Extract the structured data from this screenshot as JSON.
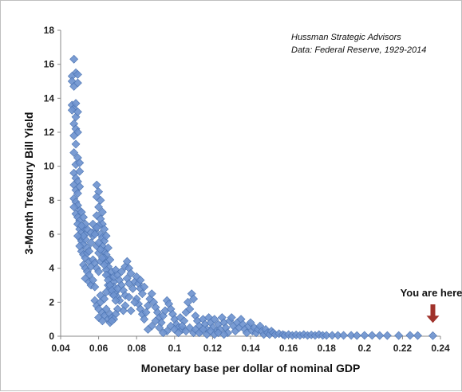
{
  "chart_data": {
    "type": "scatter",
    "title": "",
    "xlabel": "Monetary base per dollar of nominal GDP",
    "ylabel": "3-Month Treasury Bill Yield",
    "xlim": [
      0.04,
      0.24
    ],
    "ylim": [
      0,
      18
    ],
    "xticks": [
      0.04,
      0.06,
      0.08,
      0.1,
      0.12,
      0.14,
      0.16,
      0.18,
      0.2,
      0.22,
      0.24
    ],
    "xtick_labels": [
      "0.04",
      "0.06",
      "0.08",
      "0.1",
      "0.12",
      "0.14",
      "0.16",
      "0.18",
      "0.2",
      "0.22",
      "0.24"
    ],
    "yticks": [
      0,
      2,
      4,
      6,
      8,
      10,
      12,
      14,
      16,
      18
    ],
    "ytick_labels": [
      "0",
      "2",
      "4",
      "6",
      "8",
      "10",
      "12",
      "14",
      "16",
      "18"
    ],
    "grid": false,
    "marker": "diamond",
    "marker_color": "#6f94cf",
    "marker_edge_color": "#4a72b0",
    "annotations": [
      {
        "text": "Hussman Strategic Advisors"
      },
      {
        "text": "Data: Federal Reserve, 1929-2014"
      },
      {
        "text": "You are here",
        "x": 0.236,
        "y": 0.6,
        "arrow_color": "#a0322b"
      }
    ],
    "points": [
      [
        0.047,
        16.3
      ],
      [
        0.048,
        15.5
      ],
      [
        0.046,
        15.3
      ],
      [
        0.049,
        15.4
      ],
      [
        0.046,
        15.0
      ],
      [
        0.047,
        14.7
      ],
      [
        0.049,
        14.9
      ],
      [
        0.046,
        13.6
      ],
      [
        0.047,
        13.4
      ],
      [
        0.048,
        13.7
      ],
      [
        0.046,
        13.3
      ],
      [
        0.048,
        12.9
      ],
      [
        0.049,
        13.2
      ],
      [
        0.047,
        12.5
      ],
      [
        0.048,
        12.2
      ],
      [
        0.049,
        12.0
      ],
      [
        0.047,
        11.8
      ],
      [
        0.048,
        11.3
      ],
      [
        0.047,
        10.8
      ],
      [
        0.049,
        10.5
      ],
      [
        0.048,
        10.1
      ],
      [
        0.05,
        10.2
      ],
      [
        0.047,
        9.6
      ],
      [
        0.048,
        9.3
      ],
      [
        0.049,
        9.1
      ],
      [
        0.05,
        9.7
      ],
      [
        0.047,
        8.9
      ],
      [
        0.048,
        8.6
      ],
      [
        0.049,
        8.4
      ],
      [
        0.05,
        8.8
      ],
      [
        0.047,
        8.1
      ],
      [
        0.048,
        7.9
      ],
      [
        0.049,
        7.7
      ],
      [
        0.05,
        7.4
      ],
      [
        0.047,
        7.6
      ],
      [
        0.048,
        7.2
      ],
      [
        0.049,
        7.0
      ],
      [
        0.051,
        7.3
      ],
      [
        0.05,
        6.8
      ],
      [
        0.052,
        7.0
      ],
      [
        0.049,
        6.6
      ],
      [
        0.05,
        6.3
      ],
      [
        0.051,
        6.1
      ],
      [
        0.052,
        6.4
      ],
      [
        0.053,
        6.0
      ],
      [
        0.05,
        5.8
      ],
      [
        0.051,
        5.6
      ],
      [
        0.052,
        5.4
      ],
      [
        0.053,
        5.7
      ],
      [
        0.054,
        5.2
      ],
      [
        0.051,
        5.0
      ],
      [
        0.052,
        4.8
      ],
      [
        0.053,
        4.6
      ],
      [
        0.054,
        4.9
      ],
      [
        0.055,
        4.4
      ],
      [
        0.052,
        4.2
      ],
      [
        0.053,
        4.0
      ],
      [
        0.054,
        3.8
      ],
      [
        0.055,
        3.6
      ],
      [
        0.056,
        4.1
      ],
      [
        0.053,
        3.4
      ],
      [
        0.055,
        3.2
      ],
      [
        0.056,
        3.0
      ],
      [
        0.057,
        3.3
      ],
      [
        0.058,
        2.9
      ],
      [
        0.056,
        5.5
      ],
      [
        0.057,
        5.9
      ],
      [
        0.058,
        6.2
      ],
      [
        0.059,
        5.3
      ],
      [
        0.06,
        4.9
      ],
      [
        0.057,
        4.5
      ],
      [
        0.058,
        4.3
      ],
      [
        0.059,
        4.0
      ],
      [
        0.06,
        3.8
      ],
      [
        0.061,
        4.4
      ],
      [
        0.059,
        8.9
      ],
      [
        0.06,
        8.5
      ],
      [
        0.059,
        8.2
      ],
      [
        0.061,
        8.0
      ],
      [
        0.06,
        7.6
      ],
      [
        0.062,
        7.3
      ],
      [
        0.059,
        7.1
      ],
      [
        0.061,
        6.9
      ],
      [
        0.062,
        6.6
      ],
      [
        0.063,
        6.3
      ],
      [
        0.06,
        6.5
      ],
      [
        0.061,
        6.0
      ],
      [
        0.062,
        5.8
      ],
      [
        0.063,
        5.6
      ],
      [
        0.064,
        5.9
      ],
      [
        0.062,
        5.3
      ],
      [
        0.063,
        5.0
      ],
      [
        0.064,
        4.8
      ],
      [
        0.065,
        5.2
      ],
      [
        0.063,
        4.6
      ],
      [
        0.064,
        4.3
      ],
      [
        0.065,
        4.1
      ],
      [
        0.066,
        4.5
      ],
      [
        0.064,
        3.9
      ],
      [
        0.065,
        3.6
      ],
      [
        0.066,
        3.4
      ],
      [
        0.067,
        3.8
      ],
      [
        0.068,
        3.2
      ],
      [
        0.065,
        3.0
      ],
      [
        0.066,
        2.8
      ],
      [
        0.067,
        2.5
      ],
      [
        0.068,
        2.9
      ],
      [
        0.069,
        2.6
      ],
      [
        0.07,
        2.3
      ],
      [
        0.058,
        2.1
      ],
      [
        0.059,
        1.8
      ],
      [
        0.06,
        1.6
      ],
      [
        0.061,
        2.0
      ],
      [
        0.062,
        1.4
      ],
      [
        0.063,
        1.2
      ],
      [
        0.064,
        1.6
      ],
      [
        0.065,
        1.0
      ],
      [
        0.066,
        1.3
      ],
      [
        0.061,
        2.4
      ],
      [
        0.063,
        2.2
      ],
      [
        0.064,
        2.6
      ],
      [
        0.06,
        1.1
      ],
      [
        0.062,
        0.9
      ],
      [
        0.066,
        0.8
      ],
      [
        0.067,
        1.1
      ],
      [
        0.068,
        3.5
      ],
      [
        0.069,
        3.9
      ],
      [
        0.07,
        3.6
      ],
      [
        0.071,
        3.3
      ],
      [
        0.072,
        3.0
      ],
      [
        0.073,
        2.7
      ],
      [
        0.074,
        2.4
      ],
      [
        0.072,
        3.8
      ],
      [
        0.074,
        4.1
      ],
      [
        0.075,
        4.4
      ],
      [
        0.076,
        4.0
      ],
      [
        0.077,
        3.7
      ],
      [
        0.075,
        3.4
      ],
      [
        0.076,
        3.1
      ],
      [
        0.078,
        2.8
      ],
      [
        0.079,
        3.2
      ],
      [
        0.08,
        3.5
      ],
      [
        0.081,
        3.1
      ],
      [
        0.082,
        2.8
      ],
      [
        0.083,
        2.5
      ],
      [
        0.08,
        2.2
      ],
      [
        0.081,
        1.9
      ],
      [
        0.082,
        1.6
      ],
      [
        0.083,
        1.3
      ],
      [
        0.084,
        1.0
      ],
      [
        0.085,
        1.4
      ],
      [
        0.086,
        1.8
      ],
      [
        0.087,
        2.2
      ],
      [
        0.088,
        2.5
      ],
      [
        0.089,
        2.0
      ],
      [
        0.09,
        1.7
      ],
      [
        0.091,
        1.4
      ],
      [
        0.092,
        1.1
      ],
      [
        0.093,
        0.8
      ],
      [
        0.094,
        1.2
      ],
      [
        0.095,
        1.5
      ],
      [
        0.096,
        2.1
      ],
      [
        0.097,
        1.9
      ],
      [
        0.098,
        1.6
      ],
      [
        0.099,
        1.3
      ],
      [
        0.1,
        1.0
      ],
      [
        0.101,
        0.7
      ],
      [
        0.102,
        0.5
      ],
      [
        0.103,
        1.1
      ],
      [
        0.104,
        0.4
      ],
      [
        0.105,
        0.9
      ],
      [
        0.106,
        1.4
      ],
      [
        0.107,
        2.0
      ],
      [
        0.108,
        1.6
      ],
      [
        0.109,
        2.5
      ],
      [
        0.11,
        2.2
      ],
      [
        0.111,
        1.2
      ],
      [
        0.112,
        0.9
      ],
      [
        0.113,
        0.6
      ],
      [
        0.114,
        0.3
      ],
      [
        0.115,
        1.0
      ],
      [
        0.116,
        0.7
      ],
      [
        0.117,
        0.4
      ],
      [
        0.118,
        1.1
      ],
      [
        0.119,
        0.8
      ],
      [
        0.12,
        0.5
      ],
      [
        0.121,
        1.0
      ],
      [
        0.122,
        0.3
      ],
      [
        0.123,
        0.7
      ],
      [
        0.124,
        0.4
      ],
      [
        0.125,
        1.1
      ],
      [
        0.126,
        0.8
      ],
      [
        0.127,
        0.5
      ],
      [
        0.128,
        0.2
      ],
      [
        0.129,
        0.9
      ],
      [
        0.13,
        1.1
      ],
      [
        0.131,
        0.6
      ],
      [
        0.132,
        0.3
      ],
      [
        0.133,
        0.8
      ],
      [
        0.134,
        0.5
      ],
      [
        0.135,
        1.0
      ],
      [
        0.136,
        0.7
      ],
      [
        0.137,
        0.4
      ],
      [
        0.138,
        0.2
      ],
      [
        0.139,
        0.6
      ],
      [
        0.14,
        0.8
      ],
      [
        0.141,
        0.3
      ],
      [
        0.142,
        0.5
      ],
      [
        0.143,
        0.2
      ],
      [
        0.144,
        0.4
      ],
      [
        0.145,
        0.6
      ],
      [
        0.146,
        0.3
      ],
      [
        0.147,
        0.1
      ],
      [
        0.148,
        0.4
      ],
      [
        0.149,
        0.2
      ],
      [
        0.15,
        0.1
      ],
      [
        0.151,
        0.3
      ],
      [
        0.152,
        0.2
      ],
      [
        0.153,
        0.1
      ],
      [
        0.155,
        0.15
      ],
      [
        0.157,
        0.1
      ],
      [
        0.158,
        0.05
      ],
      [
        0.16,
        0.1
      ],
      [
        0.162,
        0.05
      ],
      [
        0.164,
        0.08
      ],
      [
        0.166,
        0.05
      ],
      [
        0.168,
        0.1
      ],
      [
        0.17,
        0.05
      ],
      [
        0.172,
        0.08
      ],
      [
        0.174,
        0.05
      ],
      [
        0.176,
        0.1
      ],
      [
        0.178,
        0.05
      ],
      [
        0.18,
        0.05
      ],
      [
        0.183,
        0.05
      ],
      [
        0.186,
        0.05
      ],
      [
        0.189,
        0.05
      ],
      [
        0.193,
        0.05
      ],
      [
        0.196,
        0.04
      ],
      [
        0.2,
        0.05
      ],
      [
        0.204,
        0.05
      ],
      [
        0.208,
        0.04
      ],
      [
        0.212,
        0.04
      ],
      [
        0.218,
        0.04
      ],
      [
        0.224,
        0.05
      ],
      [
        0.228,
        0.04
      ],
      [
        0.236,
        0.03
      ],
      [
        0.096,
        0.3
      ],
      [
        0.098,
        0.6
      ],
      [
        0.1,
        0.4
      ],
      [
        0.102,
        0.2
      ],
      [
        0.104,
        0.6
      ],
      [
        0.106,
        0.3
      ],
      [
        0.108,
        0.5
      ],
      [
        0.11,
        0.2
      ],
      [
        0.111,
        0.4
      ],
      [
        0.113,
        0.2
      ],
      [
        0.115,
        0.4
      ],
      [
        0.117,
        0.1
      ],
      [
        0.119,
        0.3
      ],
      [
        0.121,
        0.1
      ],
      [
        0.123,
        0.2
      ],
      [
        0.126,
        0.1
      ],
      [
        0.088,
        0.6
      ],
      [
        0.09,
        0.9
      ],
      [
        0.092,
        0.5
      ],
      [
        0.094,
        0.2
      ],
      [
        0.086,
        0.4
      ],
      [
        0.084,
        2.9
      ],
      [
        0.082,
        3.3
      ],
      [
        0.079,
        2.0
      ],
      [
        0.077,
        1.5
      ],
      [
        0.076,
        2.3
      ],
      [
        0.074,
        1.8
      ],
      [
        0.073,
        1.5
      ],
      [
        0.071,
        2.1
      ],
      [
        0.07,
        1.6
      ],
      [
        0.069,
        1.3
      ],
      [
        0.068,
        1.0
      ],
      [
        0.067,
        0.9
      ],
      [
        0.055,
        5.0
      ],
      [
        0.054,
        6.3
      ],
      [
        0.053,
        6.6
      ],
      [
        0.052,
        5.9
      ],
      [
        0.051,
        6.5
      ],
      [
        0.05,
        5.3
      ],
      [
        0.049,
        5.9
      ],
      [
        0.056,
        6.1
      ],
      [
        0.057,
        6.6
      ],
      [
        0.058,
        6.0
      ],
      [
        0.059,
        6.4
      ],
      [
        0.06,
        5.5
      ],
      [
        0.061,
        5.1
      ],
      [
        0.062,
        4.6
      ],
      [
        0.063,
        4.2
      ],
      [
        0.064,
        3.6
      ],
      [
        0.065,
        3.3
      ],
      [
        0.066,
        3.0
      ],
      [
        0.067,
        2.7
      ],
      [
        0.068,
        2.4
      ],
      [
        0.069,
        2.1
      ],
      [
        0.07,
        2.8
      ]
    ]
  }
}
